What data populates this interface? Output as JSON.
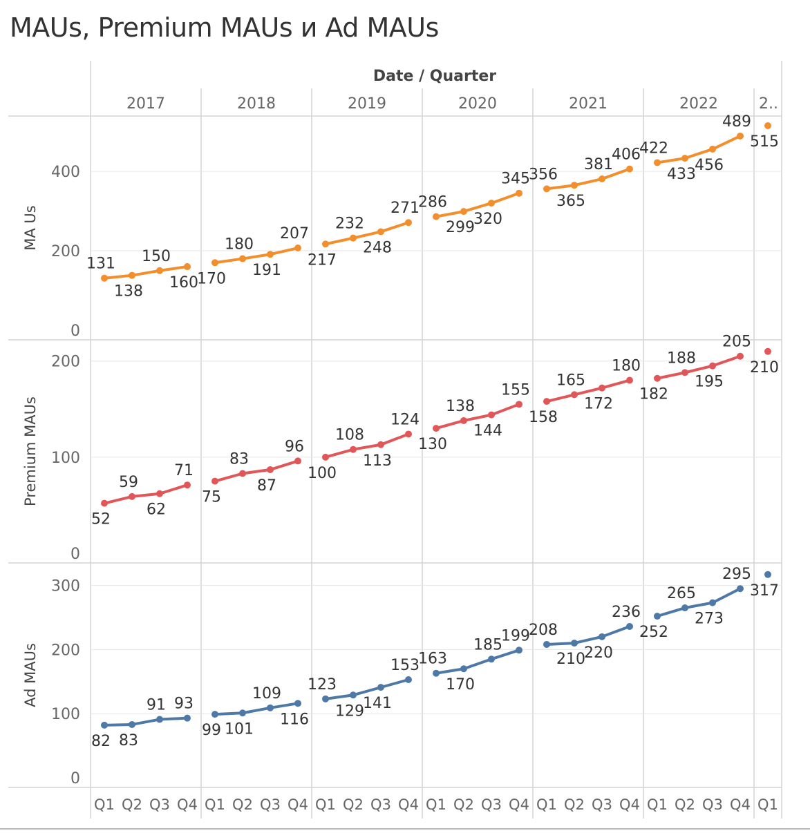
{
  "title": "MAUs, Premium MAUs и Ad MAUs",
  "header_label": "Date / Quarter",
  "colors": {
    "mau": "#F28E2B",
    "premium": "#E15759",
    "ad": "#4E79A7",
    "grid": "#e6e6e6",
    "divider": "#d4d4d4",
    "text": "#333333",
    "axis_text": "#666666"
  },
  "chart_data": {
    "type": "line",
    "years": [
      "2017",
      "2018",
      "2019",
      "2020",
      "2021",
      "2022",
      "2.."
    ],
    "quarters": [
      "Q1",
      "Q2",
      "Q3",
      "Q4",
      "Q1",
      "Q2",
      "Q3",
      "Q4",
      "Q1",
      "Q2",
      "Q3",
      "Q4",
      "Q1",
      "Q2",
      "Q3",
      "Q4",
      "Q1",
      "Q2",
      "Q3",
      "Q4",
      "Q1",
      "Q2",
      "Q3",
      "Q4",
      "Q1"
    ],
    "panels": [
      {
        "key": "mau",
        "ylabel": "MA Us",
        "ylim": [
          0,
          515
        ],
        "yticks": [
          0,
          200,
          400
        ],
        "values": [
          131,
          138,
          150,
          160,
          170,
          180,
          191,
          207,
          217,
          232,
          248,
          271,
          286,
          299,
          320,
          345,
          356,
          365,
          381,
          406,
          422,
          433,
          456,
          489,
          515
        ]
      },
      {
        "key": "premium",
        "ylabel": "Premium MAUs",
        "ylim": [
          0,
          212
        ],
        "yticks": [
          0,
          100,
          200
        ],
        "values": [
          52,
          59,
          62,
          71,
          75,
          83,
          87,
          96,
          100,
          108,
          113,
          124,
          130,
          138,
          144,
          155,
          158,
          165,
          172,
          180,
          182,
          188,
          195,
          205,
          210
        ]
      },
      {
        "key": "ad",
        "ylabel": "Ad MAUs",
        "ylim": [
          0,
          320
        ],
        "yticks": [
          0,
          100,
          200,
          300
        ],
        "values": [
          82,
          83,
          91,
          93,
          99,
          101,
          109,
          116,
          123,
          129,
          141,
          153,
          163,
          170,
          185,
          199,
          208,
          210,
          220,
          236,
          252,
          265,
          273,
          295,
          317
        ]
      }
    ]
  }
}
